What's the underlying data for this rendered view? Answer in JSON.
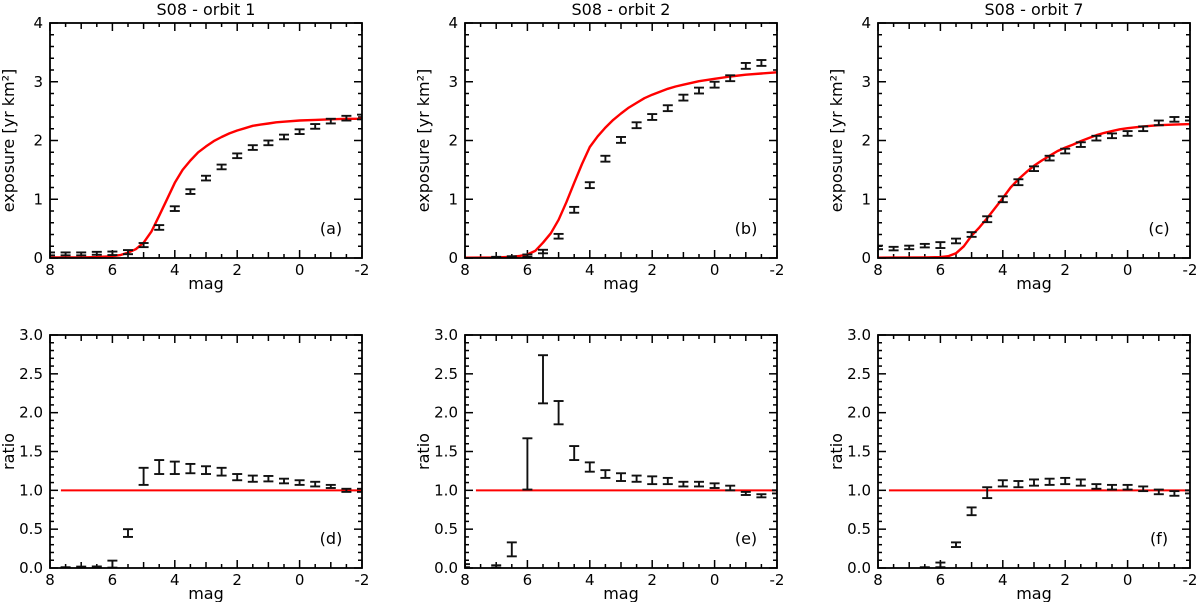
{
  "figure": {
    "background": "#ffffff",
    "model_color": "#ff0000",
    "data_color": "#111111",
    "axis_color": "#000000"
  },
  "chart_data": [
    {
      "id": "a",
      "type": "errorbar",
      "title": "S08 - orbit 1",
      "panel_label": "(a)",
      "xlabel": "mag",
      "ylabel": "exposure [yr km²]",
      "xlim": [
        8,
        -2
      ],
      "ylim": [
        0,
        4
      ],
      "xticks": {
        "major": [
          8,
          6,
          4,
          2,
          0,
          -2
        ],
        "labels": [
          "8",
          "6",
          "4",
          "2",
          "0",
          "-2"
        ],
        "mid_step": 1,
        "minor_step": 0.5
      },
      "yticks": {
        "major": [
          0,
          1,
          2,
          3,
          4
        ],
        "labels": [
          "0",
          "1",
          "2",
          "3",
          "4"
        ],
        "minor_step": 0.2
      },
      "legend": "none",
      "grid": false,
      "model_curve": [
        [
          8,
          0.01
        ],
        [
          7,
          0.01
        ],
        [
          6.5,
          0.015
        ],
        [
          6,
          0.03
        ],
        [
          5.75,
          0.05
        ],
        [
          5.5,
          0.09
        ],
        [
          5.25,
          0.15
        ],
        [
          5,
          0.26
        ],
        [
          4.75,
          0.45
        ],
        [
          4.5,
          0.72
        ],
        [
          4.25,
          1.0
        ],
        [
          4,
          1.28
        ],
        [
          3.75,
          1.5
        ],
        [
          3.5,
          1.66
        ],
        [
          3.25,
          1.8
        ],
        [
          3,
          1.9
        ],
        [
          2.75,
          1.99
        ],
        [
          2.5,
          2.06
        ],
        [
          2.25,
          2.12
        ],
        [
          2,
          2.17
        ],
        [
          1.75,
          2.21
        ],
        [
          1.5,
          2.25
        ],
        [
          1.25,
          2.27
        ],
        [
          1,
          2.29
        ],
        [
          0.75,
          2.31
        ],
        [
          0.5,
          2.32
        ],
        [
          0,
          2.34
        ],
        [
          -0.5,
          2.35
        ],
        [
          -1,
          2.36
        ],
        [
          -1.5,
          2.37
        ],
        [
          -2,
          2.37
        ]
      ],
      "points": [
        [
          8,
          0.07,
          0.025
        ],
        [
          7.5,
          0.07,
          0.025
        ],
        [
          7,
          0.07,
          0.025
        ],
        [
          6.5,
          0.08,
          0.025
        ],
        [
          6,
          0.08,
          0.03
        ],
        [
          5.5,
          0.1,
          0.035
        ],
        [
          5,
          0.22,
          0.035
        ],
        [
          4.5,
          0.52,
          0.04
        ],
        [
          4,
          0.84,
          0.04
        ],
        [
          3.5,
          1.13,
          0.04
        ],
        [
          3,
          1.36,
          0.04
        ],
        [
          2.5,
          1.55,
          0.04
        ],
        [
          2,
          1.74,
          0.04
        ],
        [
          1.5,
          1.88,
          0.04
        ],
        [
          1,
          1.96,
          0.04
        ],
        [
          0.5,
          2.06,
          0.04
        ],
        [
          0,
          2.15,
          0.04
        ],
        [
          -0.5,
          2.24,
          0.04
        ],
        [
          -1,
          2.33,
          0.04
        ],
        [
          -1.5,
          2.38,
          0.04
        ],
        [
          -2,
          2.4,
          0.04
        ]
      ]
    },
    {
      "id": "b",
      "type": "errorbar",
      "title": "S08 - orbit 2",
      "panel_label": "(b)",
      "xlabel": "mag",
      "ylabel": "exposure [yr km²]",
      "xlim": [
        8,
        -2
      ],
      "ylim": [
        0,
        4
      ],
      "xticks": {
        "major": [
          8,
          6,
          4,
          2,
          0,
          -2
        ],
        "labels": [
          "8",
          "6",
          "4",
          "2",
          "0",
          "-2"
        ],
        "mid_step": 1,
        "minor_step": 0.5
      },
      "yticks": {
        "major": [
          0,
          1,
          2,
          3,
          4
        ],
        "labels": [
          "0",
          "1",
          "2",
          "3",
          "4"
        ],
        "minor_step": 0.2
      },
      "legend": "none",
      "grid": false,
      "model_curve": [
        [
          8,
          0.005
        ],
        [
          7,
          0.01
        ],
        [
          6.5,
          0.02
        ],
        [
          6.25,
          0.035
        ],
        [
          6,
          0.06
        ],
        [
          5.75,
          0.12
        ],
        [
          5.5,
          0.26
        ],
        [
          5.25,
          0.42
        ],
        [
          5,
          0.65
        ],
        [
          4.75,
          0.95
        ],
        [
          4.5,
          1.28
        ],
        [
          4.25,
          1.6
        ],
        [
          4,
          1.89
        ],
        [
          3.75,
          2.07
        ],
        [
          3.5,
          2.22
        ],
        [
          3.25,
          2.35
        ],
        [
          3,
          2.46
        ],
        [
          2.75,
          2.56
        ],
        [
          2.5,
          2.64
        ],
        [
          2.25,
          2.72
        ],
        [
          2,
          2.78
        ],
        [
          1.75,
          2.83
        ],
        [
          1.5,
          2.88
        ],
        [
          1.25,
          2.92
        ],
        [
          1,
          2.95
        ],
        [
          0.75,
          2.98
        ],
        [
          0.5,
          3.01
        ],
        [
          0,
          3.05
        ],
        [
          -0.5,
          3.09
        ],
        [
          -1,
          3.12
        ],
        [
          -1.5,
          3.14
        ],
        [
          -2,
          3.16
        ]
      ],
      "points": [
        [
          7,
          0.01,
          0.01
        ],
        [
          6.5,
          0.02,
          0.01
        ],
        [
          6,
          0.04,
          0.02
        ],
        [
          5.5,
          0.11,
          0.03
        ],
        [
          5,
          0.37,
          0.04
        ],
        [
          4.5,
          0.82,
          0.05
        ],
        [
          4,
          1.24,
          0.05
        ],
        [
          3.5,
          1.69,
          0.05
        ],
        [
          3,
          2.01,
          0.05
        ],
        [
          2.5,
          2.26,
          0.05
        ],
        [
          2,
          2.4,
          0.05
        ],
        [
          1.5,
          2.55,
          0.05
        ],
        [
          1,
          2.73,
          0.05
        ],
        [
          0.5,
          2.85,
          0.05
        ],
        [
          0,
          2.95,
          0.05
        ],
        [
          -0.5,
          3.06,
          0.05
        ],
        [
          -1,
          3.27,
          0.05
        ],
        [
          -1.5,
          3.32,
          0.05
        ]
      ]
    },
    {
      "id": "c",
      "type": "errorbar",
      "title": "S08 - orbit 7",
      "panel_label": "(c)",
      "xlabel": "mag",
      "ylabel": "exposure [yr km²]",
      "xlim": [
        8,
        -2
      ],
      "ylim": [
        0,
        4
      ],
      "xticks": {
        "major": [
          8,
          6,
          4,
          2,
          0,
          -2
        ],
        "labels": [
          "8",
          "6",
          "4",
          "2",
          "0",
          "-2"
        ],
        "mid_step": 1,
        "minor_step": 0.5
      },
      "yticks": {
        "major": [
          0,
          1,
          2,
          3,
          4
        ],
        "labels": [
          "0",
          "1",
          "2",
          "3",
          "4"
        ],
        "minor_step": 0.2
      },
      "legend": "none",
      "grid": false,
      "model_curve": [
        [
          8,
          0.005
        ],
        [
          6.5,
          0.01
        ],
        [
          6,
          0.015
        ],
        [
          5.75,
          0.03
        ],
        [
          5.5,
          0.08
        ],
        [
          5.25,
          0.2
        ],
        [
          5,
          0.38
        ],
        [
          4.75,
          0.52
        ],
        [
          4.5,
          0.68
        ],
        [
          4.25,
          0.85
        ],
        [
          4,
          1.02
        ],
        [
          3.75,
          1.2
        ],
        [
          3.5,
          1.34
        ],
        [
          3.25,
          1.46
        ],
        [
          3,
          1.57
        ],
        [
          2.75,
          1.66
        ],
        [
          2.5,
          1.74
        ],
        [
          2.25,
          1.82
        ],
        [
          2,
          1.88
        ],
        [
          1.75,
          1.93
        ],
        [
          1.5,
          1.99
        ],
        [
          1.25,
          2.04
        ],
        [
          1,
          2.09
        ],
        [
          0.75,
          2.13
        ],
        [
          0.5,
          2.16
        ],
        [
          0.25,
          2.19
        ],
        [
          0,
          2.21
        ],
        [
          -0.5,
          2.24
        ],
        [
          -1,
          2.26
        ],
        [
          -1.5,
          2.27
        ],
        [
          -2,
          2.28
        ]
      ],
      "points": [
        [
          8,
          0.18,
          0.03
        ],
        [
          7.5,
          0.16,
          0.03
        ],
        [
          7,
          0.18,
          0.03
        ],
        [
          6.5,
          0.21,
          0.03
        ],
        [
          6,
          0.22,
          0.05
        ],
        [
          5.5,
          0.29,
          0.04
        ],
        [
          5,
          0.4,
          0.04
        ],
        [
          4.5,
          0.66,
          0.05
        ],
        [
          4,
          1.0,
          0.05
        ],
        [
          3.5,
          1.29,
          0.05
        ],
        [
          3,
          1.52,
          0.04
        ],
        [
          2.5,
          1.7,
          0.04
        ],
        [
          2,
          1.82,
          0.04
        ],
        [
          1.5,
          1.93,
          0.04
        ],
        [
          1,
          2.04,
          0.04
        ],
        [
          0.5,
          2.08,
          0.04
        ],
        [
          0,
          2.12,
          0.04
        ],
        [
          -0.5,
          2.2,
          0.04
        ],
        [
          -1,
          2.3,
          0.04
        ],
        [
          -1.5,
          2.36,
          0.04
        ],
        [
          -2,
          2.37,
          0.03
        ]
      ]
    },
    {
      "id": "d",
      "type": "errorbar",
      "title": "",
      "panel_label": "(d)",
      "xlabel": "mag",
      "ylabel": "ratio",
      "xlim": [
        8,
        -2
      ],
      "ylim": [
        0,
        3
      ],
      "xticks": {
        "major": [
          8,
          6,
          4,
          2,
          0,
          -2
        ],
        "labels": [
          "8",
          "6",
          "4",
          "2",
          "0",
          "-2"
        ],
        "mid_step": 1,
        "minor_step": 0.5
      },
      "yticks": {
        "major": [
          0,
          0.5,
          1,
          1.5,
          2,
          2.5,
          3
        ],
        "labels": [
          "0.0",
          "0.5",
          "1.0",
          "1.5",
          "2.0",
          "2.5",
          "3.0"
        ],
        "minor_step": 0.1
      },
      "legend": "none",
      "grid": false,
      "ref_line": {
        "y": 1.0,
        "x_start": 7.65,
        "x_end": -2
      },
      "points": [
        [
          7.5,
          0.005,
          0.005
        ],
        [
          7,
          0.01,
          0.008
        ],
        [
          6.5,
          0.01,
          0.01
        ],
        [
          6,
          0.05,
          0.045
        ],
        [
          5.5,
          0.45,
          0.05
        ],
        [
          5,
          1.18,
          0.11
        ],
        [
          4.5,
          1.3,
          0.09
        ],
        [
          4,
          1.29,
          0.08
        ],
        [
          3.5,
          1.28,
          0.06
        ],
        [
          3,
          1.26,
          0.05
        ],
        [
          2.5,
          1.24,
          0.05
        ],
        [
          2,
          1.17,
          0.04
        ],
        [
          1.5,
          1.15,
          0.04
        ],
        [
          1,
          1.15,
          0.035
        ],
        [
          0.5,
          1.12,
          0.03
        ],
        [
          0,
          1.1,
          0.03
        ],
        [
          -0.5,
          1.08,
          0.03
        ],
        [
          -1,
          1.05,
          0.02
        ],
        [
          -1.5,
          1.0,
          0.02
        ],
        [
          -2,
          1.0,
          0.02
        ]
      ]
    },
    {
      "id": "e",
      "type": "errorbar",
      "title": "",
      "panel_label": "(e)",
      "xlabel": "mag",
      "ylabel": "ratio",
      "xlim": [
        8,
        -2
      ],
      "ylim": [
        0,
        3
      ],
      "xticks": {
        "major": [
          8,
          6,
          4,
          2,
          0,
          -2
        ],
        "labels": [
          "8",
          "6",
          "4",
          "2",
          "0",
          "-2"
        ],
        "mid_step": 1,
        "minor_step": 0.5
      },
      "yticks": {
        "major": [
          0,
          0.5,
          1,
          1.5,
          2,
          2.5,
          3
        ],
        "labels": [
          "0.0",
          "0.5",
          "1.0",
          "1.5",
          "2.0",
          "2.5",
          "3.0"
        ],
        "minor_step": 0.1
      },
      "legend": "none",
      "grid": false,
      "ref_line": {
        "y": 1.0,
        "x_start": 7.65,
        "x_end": -2
      },
      "points": [
        [
          8,
          0.03,
          0.02
        ],
        [
          7,
          0.02,
          0.015
        ],
        [
          6.5,
          0.24,
          0.09
        ],
        [
          6,
          1.34,
          0.33
        ],
        [
          5.5,
          2.43,
          0.31
        ],
        [
          5,
          2.0,
          0.15
        ],
        [
          4.5,
          1.48,
          0.09
        ],
        [
          4,
          1.3,
          0.06
        ],
        [
          3.5,
          1.21,
          0.05
        ],
        [
          3,
          1.17,
          0.05
        ],
        [
          2.5,
          1.15,
          0.04
        ],
        [
          2,
          1.13,
          0.05
        ],
        [
          1.5,
          1.12,
          0.04
        ],
        [
          1,
          1.08,
          0.03
        ],
        [
          0.5,
          1.08,
          0.03
        ],
        [
          0,
          1.06,
          0.03
        ],
        [
          -0.5,
          1.03,
          0.03
        ],
        [
          -1,
          0.96,
          0.02
        ],
        [
          -1.5,
          0.93,
          0.02
        ],
        [
          -2,
          0.98,
          0.02
        ]
      ]
    },
    {
      "id": "f",
      "type": "errorbar",
      "title": "",
      "panel_label": "(f)",
      "xlabel": "mag",
      "ylabel": "ratio",
      "xlim": [
        8,
        -2
      ],
      "ylim": [
        0,
        3
      ],
      "xticks": {
        "major": [
          8,
          6,
          4,
          2,
          0,
          -2
        ],
        "labels": [
          "8",
          "6",
          "4",
          "2",
          "0",
          "-2"
        ],
        "mid_step": 1,
        "minor_step": 0.5
      },
      "yticks": {
        "major": [
          0,
          0.5,
          1,
          1.5,
          2,
          2.5,
          3
        ],
        "labels": [
          "0.0",
          "0.5",
          "1.0",
          "1.5",
          "2.0",
          "2.5",
          "3.0"
        ],
        "minor_step": 0.1
      },
      "legend": "none",
      "grid": false,
      "ref_line": {
        "y": 1.0,
        "x_start": 7.65,
        "x_end": -2
      },
      "points": [
        [
          6.5,
          0.005,
          0.005
        ],
        [
          6,
          0.04,
          0.03
        ],
        [
          5.5,
          0.3,
          0.03
        ],
        [
          5,
          0.73,
          0.05
        ],
        [
          4.5,
          0.97,
          0.07
        ],
        [
          4,
          1.09,
          0.04
        ],
        [
          3.5,
          1.08,
          0.04
        ],
        [
          3,
          1.1,
          0.04
        ],
        [
          2.5,
          1.11,
          0.04
        ],
        [
          2,
          1.12,
          0.04
        ],
        [
          1.5,
          1.1,
          0.04
        ],
        [
          1,
          1.05,
          0.03
        ],
        [
          0.5,
          1.04,
          0.03
        ],
        [
          0,
          1.04,
          0.03
        ],
        [
          -0.5,
          1.02,
          0.03
        ],
        [
          -1,
          0.98,
          0.03
        ],
        [
          -1.5,
          0.96,
          0.03
        ],
        [
          -2,
          0.98,
          0.02
        ]
      ]
    }
  ]
}
